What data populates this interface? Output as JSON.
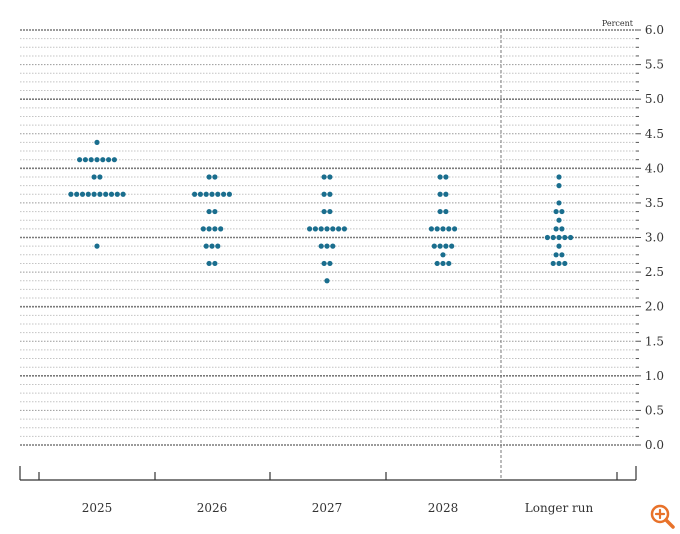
{
  "chart_data": {
    "type": "scatter",
    "ylabel": "Percent",
    "ylim": [
      0,
      6.0
    ],
    "yticks": [
      0.0,
      0.5,
      1.0,
      1.5,
      2.0,
      2.5,
      3.0,
      3.5,
      4.0,
      4.5,
      5.0,
      5.5,
      6.0
    ],
    "ytick_labels": [
      "0.0",
      "0.5",
      "1.0",
      "1.5",
      "2.0",
      "2.5",
      "3.0",
      "3.5",
      "4.0",
      "4.5",
      "5.0",
      "5.5",
      "6.0"
    ],
    "categories": [
      "2025",
      "2026",
      "2027",
      "2028",
      "Longer run"
    ],
    "dot_color": "#1a6e8e",
    "gridline_step": 0.125,
    "legend": "none",
    "columns": [
      {
        "category": "2025",
        "rows": [
          {
            "y": 4.375,
            "count": 1
          },
          {
            "y": 4.125,
            "count": 7
          },
          {
            "y": 3.875,
            "count": 2
          },
          {
            "y": 3.625,
            "count": 10
          },
          {
            "y": 2.875,
            "count": 1
          }
        ]
      },
      {
        "category": "2026",
        "rows": [
          {
            "y": 3.875,
            "count": 2
          },
          {
            "y": 3.625,
            "count": 7
          },
          {
            "y": 3.375,
            "count": 2
          },
          {
            "y": 3.125,
            "count": 4
          },
          {
            "y": 2.875,
            "count": 3
          },
          {
            "y": 2.625,
            "count": 2
          }
        ]
      },
      {
        "category": "2027",
        "rows": [
          {
            "y": 3.875,
            "count": 2
          },
          {
            "y": 3.625,
            "count": 2
          },
          {
            "y": 3.375,
            "count": 2
          },
          {
            "y": 3.125,
            "count": 7
          },
          {
            "y": 2.875,
            "count": 3
          },
          {
            "y": 2.625,
            "count": 2
          },
          {
            "y": 2.375,
            "count": 1
          }
        ]
      },
      {
        "category": "2028",
        "rows": [
          {
            "y": 3.875,
            "count": 2
          },
          {
            "y": 3.625,
            "count": 2
          },
          {
            "y": 3.375,
            "count": 2
          },
          {
            "y": 3.125,
            "count": 5
          },
          {
            "y": 2.875,
            "count": 4
          },
          {
            "y": 2.75,
            "count": 1
          },
          {
            "y": 2.625,
            "count": 3
          }
        ]
      },
      {
        "category": "Longer run",
        "rows": [
          {
            "y": 3.875,
            "count": 1
          },
          {
            "y": 3.75,
            "count": 1
          },
          {
            "y": 3.5,
            "count": 1
          },
          {
            "y": 3.375,
            "count": 2
          },
          {
            "y": 3.25,
            "count": 1
          },
          {
            "y": 3.125,
            "count": 2
          },
          {
            "y": 3.0,
            "count": 5
          },
          {
            "y": 2.875,
            "count": 1
          },
          {
            "y": 2.75,
            "count": 2
          },
          {
            "y": 2.625,
            "count": 3
          }
        ]
      }
    ]
  },
  "controls": {
    "zoom_icon": "zoom-in-icon",
    "zoom_color": "#e8722a"
  }
}
